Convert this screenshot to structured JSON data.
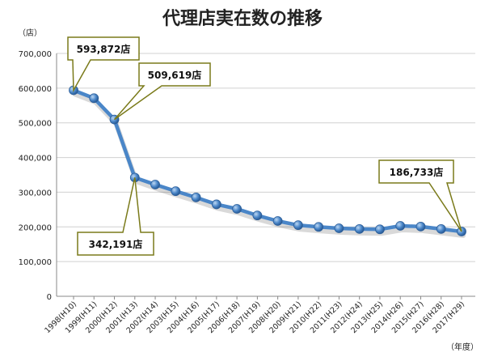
{
  "chart_data": {
    "type": "line",
    "title": "代理店実在数の推移",
    "y_unit": "（店）",
    "x_unit": "（年度）",
    "ylim": [
      0,
      700000
    ],
    "y_ticks": [
      "0",
      "100,000",
      "200,000",
      "300,000",
      "400,000",
      "500,000",
      "600,000",
      "700,000"
    ],
    "grid": true,
    "categories": [
      "1998(H10)",
      "1999(H11)",
      "2000(H12)",
      "2001(H13)",
      "2002(H14)",
      "2003(H15)",
      "2004(H16)",
      "2005(H17)",
      "2006(H18)",
      "2007(H19)",
      "2008(H20)",
      "2009(H21)",
      "2010(H22)",
      "2011(H23)",
      "2012(H24)",
      "2013(H25)",
      "2014(H26)",
      "2015(H27)",
      "2016(H28)",
      "2017(H29)"
    ],
    "values": [
      593872,
      571000,
      509619,
      342191,
      322000,
      303000,
      285000,
      265000,
      252000,
      233000,
      217000,
      205000,
      200000,
      196000,
      194000,
      193000,
      203000,
      201000,
      194000,
      186733
    ],
    "line_color": "#4a86c8",
    "annotations": [
      {
        "index": 0,
        "text": "593,872店"
      },
      {
        "index": 2,
        "text": "509,619店"
      },
      {
        "index": 3,
        "text": "342,191店"
      },
      {
        "index": 19,
        "text": "186,733店"
      }
    ]
  }
}
